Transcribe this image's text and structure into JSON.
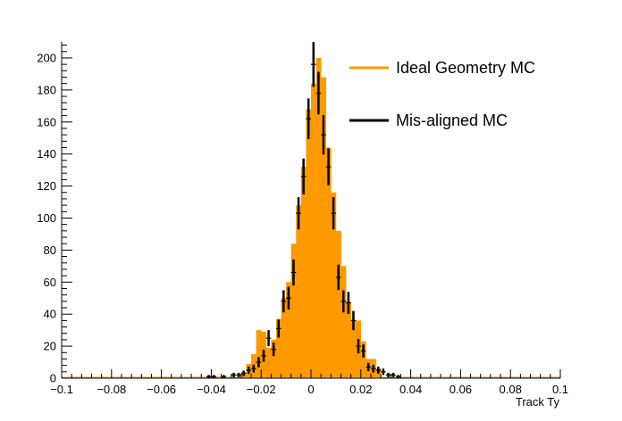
{
  "chart_data": {
    "type": "histogram",
    "title": "",
    "xlabel": "Track Ty",
    "ylabel": "",
    "xlim": [
      -0.1,
      0.1
    ],
    "ylim": [
      0,
      210
    ],
    "x_ticks": [
      -0.1,
      -0.08,
      -0.06,
      -0.04,
      -0.02,
      0,
      0.02,
      0.04,
      0.06,
      0.08,
      0.1
    ],
    "x_tick_labels": [
      "−0.1",
      "−0.08",
      "−0.06",
      "−0.04",
      "−0.02",
      "0",
      "0.02",
      "0.04",
      "0.06",
      "0.08",
      "0.1"
    ],
    "y_ticks": [
      0,
      20,
      40,
      60,
      80,
      100,
      120,
      140,
      160,
      180,
      200
    ],
    "y_tick_labels": [
      "0",
      "20",
      "40",
      "60",
      "80",
      "100",
      "120",
      "140",
      "160",
      "180",
      "200"
    ],
    "bin_width": 0.002,
    "grid": false,
    "legend_position": "top-right",
    "colors": {
      "ideal": "#ff9900",
      "misaligned": "#000000"
    },
    "series": [
      {
        "name": "Ideal Geometry MC",
        "kind": "filled-histogram",
        "bin_edges_start": -0.1,
        "values": [
          0,
          0,
          0,
          0,
          0,
          0,
          0,
          0,
          0,
          0,
          0,
          0,
          0,
          0,
          0,
          0,
          0,
          0,
          0,
          0,
          0,
          0,
          0,
          0,
          0,
          0,
          0,
          0,
          0,
          0,
          1,
          1,
          1,
          0,
          0,
          0,
          4,
          9,
          15,
          30,
          29,
          19,
          24,
          37,
          50,
          60,
          84,
          108,
          132,
          168,
          184,
          200,
          188,
          144,
          116,
          92,
          70,
          48,
          36,
          36,
          23,
          12,
          12,
          6,
          0,
          0,
          0,
          0,
          0,
          0,
          0,
          0,
          0,
          0,
          0,
          0,
          0,
          0,
          0,
          0,
          0,
          0,
          0,
          0,
          0,
          0,
          0,
          0,
          0,
          0,
          0,
          0,
          0,
          0,
          0,
          0,
          0,
          0,
          0,
          0
        ]
      },
      {
        "name": "Mis-aligned MC",
        "kind": "error-points",
        "points": [
          {
            "x": -0.041,
            "y": 1,
            "err": 1
          },
          {
            "x": -0.039,
            "y": 1,
            "err": 1
          },
          {
            "x": -0.035,
            "y": 1,
            "err": 1
          },
          {
            "x": -0.031,
            "y": 2,
            "err": 1.4
          },
          {
            "x": -0.029,
            "y": 2,
            "err": 1.4
          },
          {
            "x": -0.027,
            "y": 3,
            "err": 1.7
          },
          {
            "x": -0.025,
            "y": 5,
            "err": 2.2
          },
          {
            "x": -0.023,
            "y": 6,
            "err": 2.4
          },
          {
            "x": -0.021,
            "y": 10,
            "err": 3.2
          },
          {
            "x": -0.019,
            "y": 14,
            "err": 3.7
          },
          {
            "x": -0.017,
            "y": 25,
            "err": 5
          },
          {
            "x": -0.015,
            "y": 18,
            "err": 4.2
          },
          {
            "x": -0.013,
            "y": 31,
            "err": 5.6
          },
          {
            "x": -0.011,
            "y": 48,
            "err": 6.9
          },
          {
            "x": -0.009,
            "y": 50,
            "err": 7.1
          },
          {
            "x": -0.007,
            "y": 66,
            "err": 8.1
          },
          {
            "x": -0.005,
            "y": 103,
            "err": 10.1
          },
          {
            "x": -0.003,
            "y": 126,
            "err": 11.2
          },
          {
            "x": -0.001,
            "y": 162,
            "err": 12.7
          },
          {
            "x": 0.001,
            "y": 196,
            "err": 14
          },
          {
            "x": 0.003,
            "y": 178,
            "err": 13.3
          },
          {
            "x": 0.005,
            "y": 152,
            "err": 12.3
          },
          {
            "x": 0.007,
            "y": 132,
            "err": 11.5
          },
          {
            "x": 0.009,
            "y": 103,
            "err": 10.1
          },
          {
            "x": 0.011,
            "y": 63,
            "err": 7.9
          },
          {
            "x": 0.013,
            "y": 48,
            "err": 6.9
          },
          {
            "x": 0.015,
            "y": 47,
            "err": 6.9
          },
          {
            "x": 0.017,
            "y": 36,
            "err": 6
          },
          {
            "x": 0.019,
            "y": 20,
            "err": 4.5
          },
          {
            "x": 0.021,
            "y": 17,
            "err": 4.1
          },
          {
            "x": 0.023,
            "y": 7,
            "err": 2.6
          },
          {
            "x": 0.025,
            "y": 6,
            "err": 2.4
          },
          {
            "x": 0.027,
            "y": 5,
            "err": 2.2
          },
          {
            "x": 0.029,
            "y": 4,
            "err": 2
          },
          {
            "x": 0.031,
            "y": 2,
            "err": 1.4
          },
          {
            "x": 0.033,
            "y": 2,
            "err": 1.4
          },
          {
            "x": 0.035,
            "y": 1,
            "err": 1
          }
        ]
      }
    ]
  }
}
